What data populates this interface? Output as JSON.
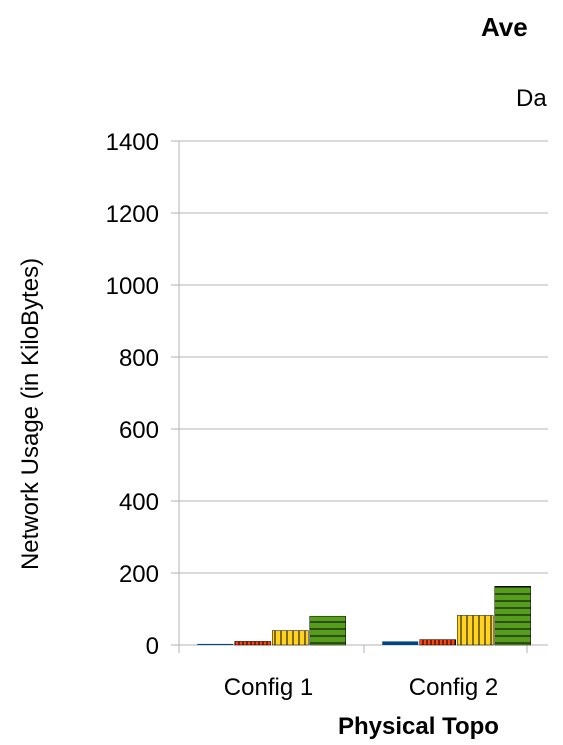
{
  "chart_data": {
    "type": "bar",
    "title": "Ave",
    "subtitle": "Da",
    "ylabel": "Network Usage (in KiloBytes)",
    "xlabel": "Physical Topo",
    "ylim": [
      0,
      1400
    ],
    "yticks": [
      0,
      200,
      400,
      600,
      800,
      1000,
      1200,
      1400
    ],
    "grid": true,
    "categories": [
      "Config 1",
      "Config 2"
    ],
    "series": [
      {
        "values": [
          3,
          10
        ],
        "color": "#004586",
        "pattern": "solid"
      },
      {
        "values": [
          10,
          15
        ],
        "color": "#ff420e",
        "pattern": "vertical-lines"
      },
      {
        "values": [
          40,
          82
        ],
        "color": "#ffd320",
        "pattern": "vertical-lines"
      },
      {
        "values": [
          80,
          163
        ],
        "color": "#579d1c",
        "pattern": "horizontal-lines"
      }
    ]
  }
}
